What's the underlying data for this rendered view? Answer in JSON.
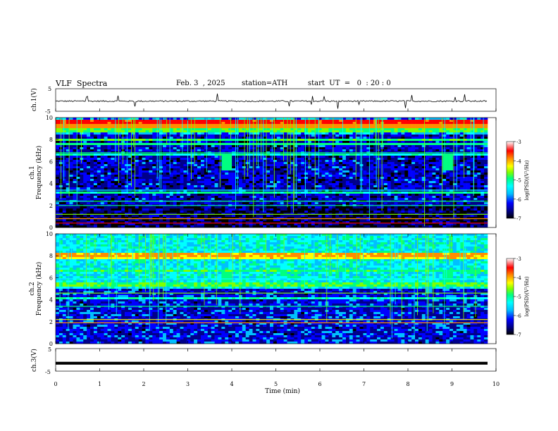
{
  "header": {
    "title": "VLF  Spectra",
    "date": "Feb. 3  , 2025",
    "station": "station=ATH",
    "start_ut": "start  UT  =   0  : 20 : 0"
  },
  "colors": {
    "background": "#ffffff",
    "waveform": "#000000",
    "colormap": [
      "#000000",
      "#00008b",
      "#0000ff",
      "#00bfff",
      "#00ffff",
      "#00ff80",
      "#7fff00",
      "#ffff00",
      "#ff8c00",
      "#ff0000",
      "#ffffff"
    ]
  },
  "chart_data": [
    {
      "type": "line",
      "panel": "ch1-waveform",
      "ylabel": "ch.1(V)",
      "ylim": [
        -5,
        5
      ],
      "yticks": [
        "5",
        "-5"
      ],
      "xlim": [
        0,
        10
      ],
      "note_values": "noisy waveform around ~-0.5 V with sporadic spikes",
      "baseline": -0.5,
      "noise_amplitude": 0.6
    },
    {
      "type": "heatmap",
      "panel": "ch1-spectrogram",
      "ylabel_line1": "ch.1",
      "ylabel_line2": "Frequency  (kHz)",
      "ylim": [
        0,
        10
      ],
      "yticks": [
        "0",
        "2",
        "4",
        "6",
        "8",
        "10"
      ],
      "xlim": [
        0,
        10
      ],
      "colorbar": {
        "label": "log(PSD)(V²/Hz)",
        "range": [
          -7,
          -3
        ],
        "ticks": [
          "-3",
          "-4",
          "-5",
          "-6",
          "-7"
        ]
      },
      "bands_khz": [
        {
          "freq": 0.4,
          "level": -3.6
        },
        {
          "freq": 0.8,
          "level": -3.9
        },
        {
          "freq": 1.2,
          "level": -4.8
        },
        {
          "freq": 2.0,
          "level": -4.9
        },
        {
          "freq": 2.4,
          "level": -5.0
        },
        {
          "freq": 3.4,
          "level": -5.2
        },
        {
          "freq": 6.8,
          "level": -5.1
        }
      ],
      "bursts_min": [
        3.95,
        9.05
      ]
    },
    {
      "type": "heatmap",
      "panel": "ch2-spectrogram",
      "ylabel_line1": "ch.2",
      "ylabel_line2": "Frequency  (kHz)",
      "ylim": [
        0,
        10
      ],
      "yticks": [
        "0",
        "2",
        "4",
        "6",
        "8",
        "10"
      ],
      "xlim": [
        0,
        10
      ],
      "colorbar": {
        "label": "log(PSD)(V²/Hz)",
        "range": [
          -7,
          -3
        ],
        "ticks": [
          "-3",
          "-4",
          "-5",
          "-6",
          "-7"
        ]
      },
      "bands_khz": [
        {
          "freq": 1.9,
          "level": -4.0
        },
        {
          "freq": 2.2,
          "level": -4.2
        },
        {
          "freq": 3.4,
          "level": -4.9
        },
        {
          "freq": 4.6,
          "level": -4.8
        },
        {
          "freq": 5.9,
          "level": -5.2
        }
      ],
      "bursts_min": [
        3.95,
        9.05
      ]
    },
    {
      "type": "line",
      "panel": "ch3-waveform",
      "ylabel": "ch.3(V)",
      "ylim": [
        -5,
        5
      ],
      "yticks": [
        "5",
        "-5"
      ],
      "xlim": [
        0,
        10
      ],
      "baseline": -1.5,
      "noise_amplitude": 0.1,
      "xlabel": "Time  (min)",
      "xticks": [
        "0",
        "1",
        "2",
        "3",
        "4",
        "5",
        "6",
        "7",
        "8",
        "9",
        "10"
      ]
    }
  ]
}
